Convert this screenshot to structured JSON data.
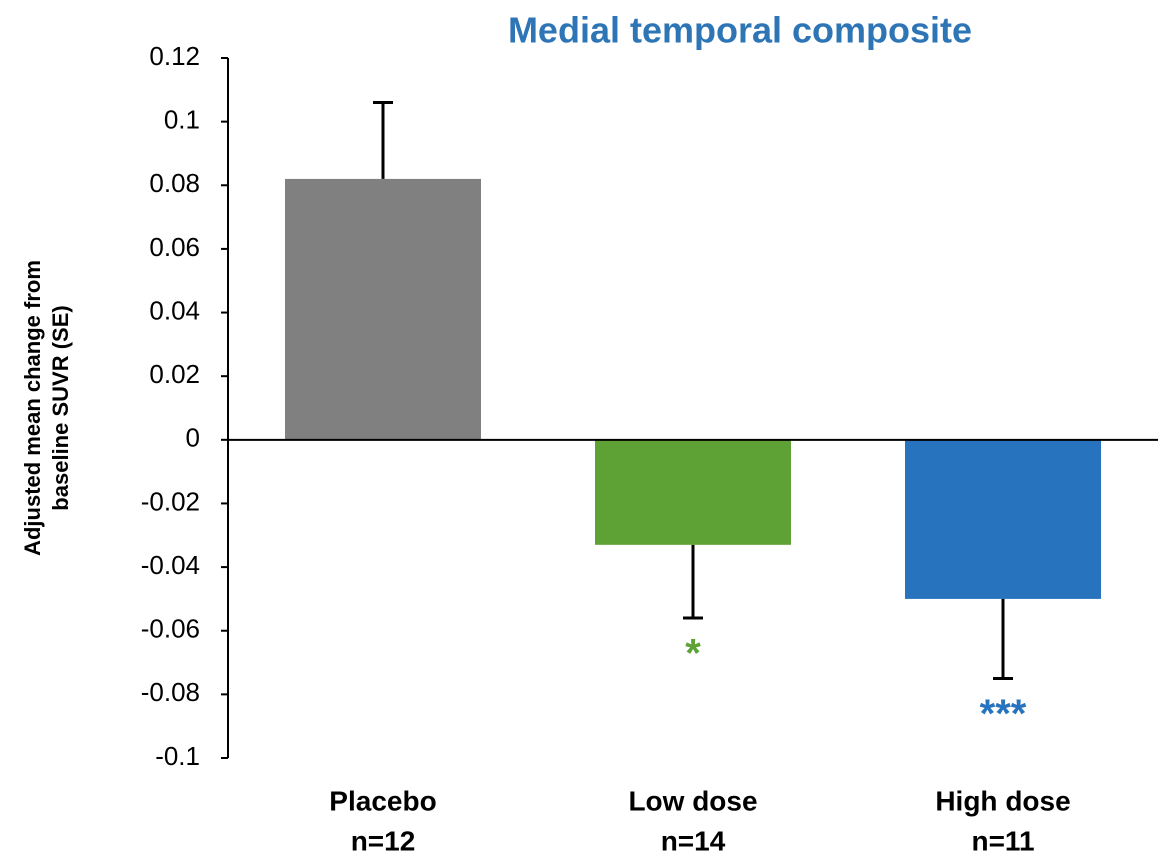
{
  "chart_data": {
    "type": "bar",
    "title": "Medial temporal composite",
    "ylabel": [
      "Adjusted mean change from",
      "baseline SUVR (SE)"
    ],
    "categories": [
      "Placebo",
      "Low dose",
      "High dose"
    ],
    "category_n": [
      "n=12",
      "n=14",
      "n=11"
    ],
    "values": [
      0.082,
      -0.033,
      -0.05
    ],
    "errors": [
      0.024,
      0.023,
      0.025
    ],
    "colors": [
      "#808080",
      "#5ea135",
      "#2873be"
    ],
    "significance": [
      null,
      "*",
      "***"
    ],
    "ylim": [
      -0.1,
      0.12
    ],
    "yticks": [
      0.12,
      0.1,
      0.08,
      0.06,
      0.04,
      0.02,
      0,
      -0.02,
      -0.04,
      -0.06,
      -0.08,
      -0.1
    ]
  }
}
